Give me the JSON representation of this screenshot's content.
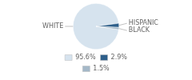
{
  "chart_data": {
    "type": "pie",
    "categories": [
      "WHITE",
      "HISPANIC",
      "BLACK"
    ],
    "values": [
      95.6,
      2.9,
      1.5
    ],
    "value_labels": [
      "95.6%",
      "2.9%",
      "1.5%"
    ],
    "colors": [
      "#d6e3ee",
      "#2e5f8a",
      "#a4b8c8"
    ],
    "legend": "bottom"
  }
}
